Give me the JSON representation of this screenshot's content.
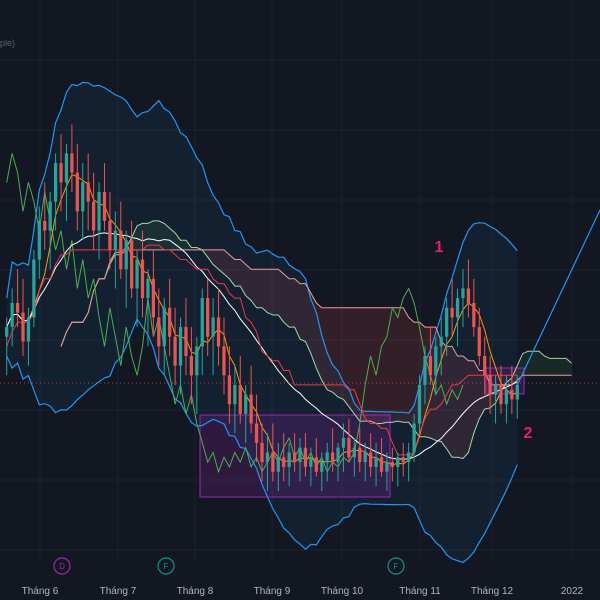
{
  "chart_data": {
    "type": "candlestick",
    "title": "",
    "corner_text": "ple)",
    "x_ticks": [
      "Tháng 6",
      "Tháng 7",
      "Tháng 8",
      "Tháng 9",
      "Tháng 10",
      "Tháng 11",
      "Tháng 12",
      "2022"
    ],
    "event_badges": [
      {
        "label": "D",
        "color": "#9c27b0",
        "near": "Tháng 6"
      },
      {
        "label": "F",
        "color": "#089981",
        "near": "Tháng 8"
      },
      {
        "label": "F",
        "color": "#089981",
        "near": "Tháng 11"
      }
    ],
    "annotations": [
      "1",
      "2"
    ],
    "colors": {
      "background": "#131722",
      "up": "#26a69a",
      "down": "#ef5350",
      "bollinger": "#2196f3",
      "ichimoku_span_a": "#a5d6a7",
      "ichimoku_span_b": "#ef9a9a",
      "lagging": "#4caf50",
      "ma_fast": "#ff9800",
      "ma_slow": "#ffffff",
      "baseline": "#f23645",
      "box": "#9c27b0",
      "annotation": "#e91e63"
    },
    "candles": [
      [
        48,
        52,
        40,
        50
      ],
      [
        50,
        58,
        46,
        55
      ],
      [
        55,
        62,
        50,
        53
      ],
      [
        53,
        60,
        44,
        47
      ],
      [
        47,
        54,
        42,
        52
      ],
      [
        52,
        66,
        50,
        64
      ],
      [
        64,
        75,
        60,
        72
      ],
      [
        72,
        80,
        66,
        70
      ],
      [
        70,
        78,
        62,
        76
      ],
      [
        76,
        86,
        70,
        84
      ],
      [
        84,
        90,
        74,
        80
      ],
      [
        80,
        88,
        72,
        86
      ],
      [
        86,
        92,
        78,
        82
      ],
      [
        82,
        88,
        70,
        74
      ],
      [
        74,
        84,
        68,
        80
      ],
      [
        80,
        86,
        70,
        76
      ],
      [
        76,
        82,
        66,
        70
      ],
      [
        70,
        80,
        64,
        78
      ],
      [
        78,
        84,
        70,
        72
      ],
      [
        72,
        78,
        62,
        66
      ],
      [
        66,
        74,
        58,
        70
      ],
      [
        70,
        76,
        60,
        62
      ],
      [
        62,
        70,
        54,
        68
      ],
      [
        68,
        72,
        56,
        58
      ],
      [
        58,
        66,
        50,
        64
      ],
      [
        64,
        70,
        52,
        56
      ],
      [
        56,
        62,
        46,
        60
      ],
      [
        60,
        66,
        48,
        52
      ],
      [
        52,
        58,
        42,
        46
      ],
      [
        46,
        56,
        40,
        54
      ],
      [
        54,
        60,
        44,
        48
      ],
      [
        48,
        54,
        38,
        42
      ],
      [
        42,
        52,
        36,
        50
      ],
      [
        50,
        56,
        40,
        44
      ],
      [
        44,
        50,
        34,
        40
      ],
      [
        40,
        48,
        32,
        46
      ],
      [
        46,
        58,
        40,
        56
      ],
      [
        56,
        60,
        44,
        48
      ],
      [
        48,
        56,
        40,
        52
      ],
      [
        52,
        58,
        42,
        46
      ],
      [
        46,
        52,
        36,
        40
      ],
      [
        40,
        46,
        30,
        34
      ],
      [
        34,
        42,
        28,
        38
      ],
      [
        38,
        44,
        30,
        32
      ],
      [
        32,
        38,
        26,
        36
      ],
      [
        36,
        42,
        28,
        30
      ],
      [
        30,
        36,
        22,
        26
      ],
      [
        26,
        30,
        18,
        22
      ],
      [
        22,
        28,
        16,
        24
      ],
      [
        24,
        30,
        18,
        20
      ],
      [
        20,
        26,
        16,
        23
      ],
      [
        23,
        28,
        18,
        21
      ],
      [
        21,
        26,
        17,
        24
      ],
      [
        24,
        28,
        20,
        22
      ],
      [
        22,
        27,
        18,
        25
      ],
      [
        25,
        28,
        19,
        21
      ],
      [
        21,
        25,
        17,
        23
      ],
      [
        23,
        27,
        19,
        20
      ],
      [
        20,
        24,
        16,
        22
      ],
      [
        22,
        26,
        18,
        24
      ],
      [
        24,
        29,
        20,
        22
      ],
      [
        22,
        26,
        18,
        25
      ],
      [
        25,
        30,
        20,
        27
      ],
      [
        27,
        31,
        22,
        23
      ],
      [
        23,
        27,
        19,
        25
      ],
      [
        25,
        29,
        20,
        22
      ],
      [
        22,
        26,
        18,
        24
      ],
      [
        24,
        28,
        19,
        21
      ],
      [
        21,
        26,
        17,
        23
      ],
      [
        23,
        27,
        19,
        20
      ],
      [
        20,
        24,
        16,
        22
      ],
      [
        22,
        25,
        18,
        21
      ],
      [
        21,
        24,
        17,
        23
      ],
      [
        23,
        26,
        19,
        22
      ],
      [
        22,
        26,
        18,
        24
      ],
      [
        24,
        32,
        22,
        30
      ],
      [
        30,
        40,
        28,
        38
      ],
      [
        38,
        46,
        34,
        44
      ],
      [
        44,
        50,
        38,
        40
      ],
      [
        40,
        48,
        36,
        46
      ],
      [
        46,
        52,
        40,
        48
      ],
      [
        48,
        56,
        44,
        54
      ],
      [
        54,
        60,
        48,
        52
      ],
      [
        52,
        58,
        46,
        56
      ],
      [
        56,
        62,
        50,
        58
      ],
      [
        58,
        64,
        52,
        55
      ],
      [
        55,
        60,
        48,
        50
      ],
      [
        50,
        54,
        42,
        44
      ],
      [
        44,
        48,
        36,
        40
      ],
      [
        40,
        44,
        32,
        36
      ],
      [
        36,
        40,
        30,
        38
      ],
      [
        38,
        42,
        32,
        34
      ],
      [
        34,
        40,
        30,
        37
      ],
      [
        37,
        42,
        32,
        35
      ],
      [
        35,
        40,
        31,
        38
      ]
    ]
  }
}
